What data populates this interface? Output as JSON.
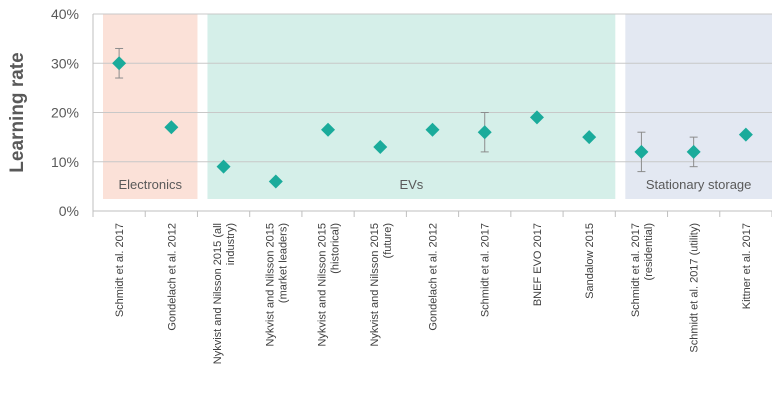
{
  "chart_data": {
    "type": "scatter",
    "ylabel": "Learning rate",
    "ylim": [
      0,
      40
    ],
    "yticks": [
      "0%",
      "10%",
      "20%",
      "30%",
      "40%"
    ],
    "grid": true,
    "marker_color": "#1aab9b",
    "categories": [
      [
        "Schmidt et al. 2017"
      ],
      [
        "Gondelach et al. 2012"
      ],
      [
        "Nykvist and Nilsson 2015 (all",
        "industry)"
      ],
      [
        "Nykvist and Nilsson 2015",
        "(market leaders)"
      ],
      [
        "Nykvist and Nilsson 2015",
        "(historical)"
      ],
      [
        "Nykvist and Nilsson 2015",
        "(future)"
      ],
      [
        "Gondelach et al. 2012"
      ],
      [
        "Schmidt et al. 2017"
      ],
      [
        "BNEF EVO 2017"
      ],
      [
        "Sandalow 2015"
      ],
      [
        "Schmidt et al. 2017",
        "(residential)"
      ],
      [
        "Schmidt et al. 2017 (utility)"
      ],
      [
        "Kittner et al. 2017"
      ]
    ],
    "values": [
      30,
      17,
      9,
      6,
      16.5,
      13,
      16.5,
      16,
      19,
      15,
      12,
      12,
      15.5
    ],
    "error_low": [
      27,
      null,
      null,
      null,
      null,
      null,
      null,
      12,
      null,
      null,
      8,
      9,
      null
    ],
    "error_high": [
      33,
      null,
      null,
      null,
      null,
      null,
      null,
      20,
      null,
      null,
      16,
      15,
      null
    ],
    "regions": [
      {
        "label": "Electronics",
        "start": 0,
        "end": 1,
        "color": "#fbe1d8"
      },
      {
        "label": "EVs",
        "start": 2,
        "end": 9,
        "color": "#d5efe9"
      },
      {
        "label": "Stationary storage",
        "start": 10,
        "end": 12,
        "color": "#e3e8f2"
      }
    ]
  }
}
